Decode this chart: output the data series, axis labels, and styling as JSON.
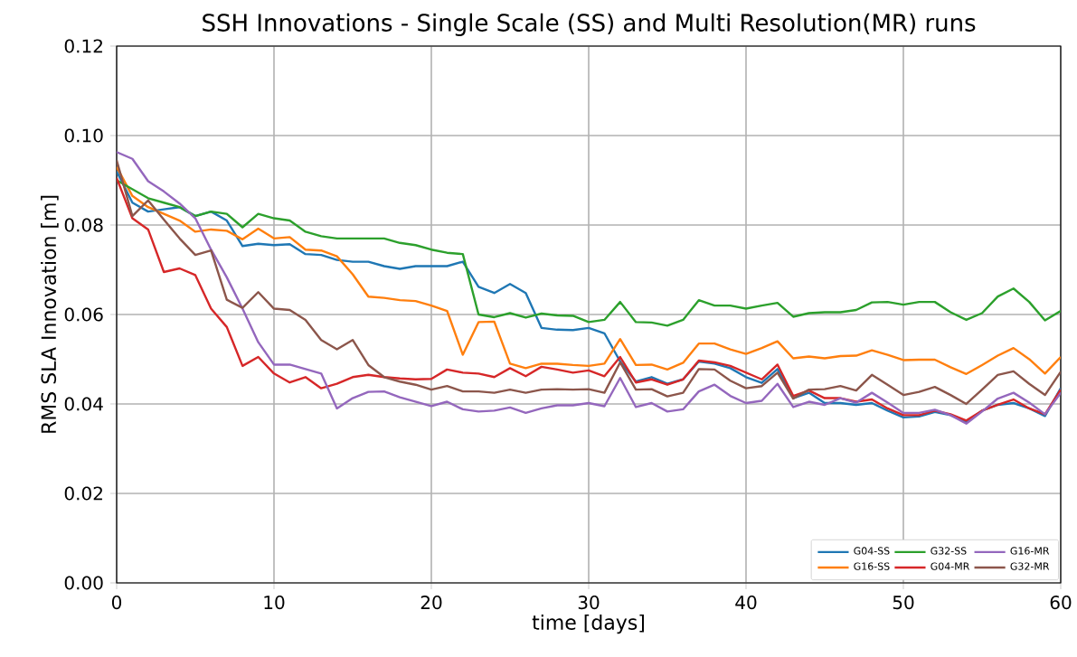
{
  "chart_data": {
    "type": "line",
    "title": "SSH Innovations - Single Scale (SS) and Multi Resolution(MR) runs",
    "xlabel": "time [days]",
    "ylabel": "RMS SLA Innovation [m]",
    "x": [
      0,
      1,
      2,
      3,
      4,
      5,
      6,
      7,
      8,
      9,
      10,
      11,
      12,
      13,
      14,
      15,
      16,
      17,
      18,
      19,
      20,
      21,
      22,
      23,
      24,
      25,
      26,
      27,
      28,
      29,
      30,
      31,
      32,
      33,
      34,
      35,
      36,
      37,
      38,
      39,
      40,
      41,
      42,
      43,
      44,
      45,
      46,
      47,
      48,
      49,
      50,
      51,
      52,
      53,
      54,
      55,
      56,
      57,
      58,
      59,
      60
    ],
    "xlim": [
      0,
      60
    ],
    "ylim": [
      0,
      0.12
    ],
    "xticks": [
      0,
      10,
      20,
      30,
      40,
      50,
      60
    ],
    "yticks": [
      {
        "value": 0,
        "label": "0.00"
      },
      {
        "value": 0.02,
        "label": "0.02"
      },
      {
        "value": 0.04,
        "label": "0.04"
      },
      {
        "value": 0.06,
        "label": "0.06"
      },
      {
        "value": 0.08,
        "label": "0.08"
      },
      {
        "value": 0.1,
        "label": "0.10"
      },
      {
        "value": 0.12,
        "label": "0.12"
      }
    ],
    "grid": true,
    "legend": "bottom right",
    "marker": "none",
    "line_style": "solid",
    "series": [
      {
        "name": "G04-SS",
        "color": "#1f77b4",
        "values": [
          0.092,
          0.085,
          0.083,
          0.0835,
          0.084,
          0.082,
          0.083,
          0.081,
          0.0753,
          0.0758,
          0.0755,
          0.0757,
          0.0735,
          0.0733,
          0.0722,
          0.0718,
          0.0718,
          0.0708,
          0.0702,
          0.0708,
          0.0708,
          0.0708,
          0.0718,
          0.0662,
          0.0648,
          0.0668,
          0.0648,
          0.057,
          0.0566,
          0.0565,
          0.057,
          0.0558,
          0.0495,
          0.045,
          0.046,
          0.0445,
          0.0455,
          0.0495,
          0.049,
          0.048,
          0.046,
          0.0447,
          0.0478,
          0.0413,
          0.0425,
          0.0402,
          0.0402,
          0.0398,
          0.0402,
          0.0385,
          0.037,
          0.0372,
          0.0382,
          0.0375,
          0.036,
          0.0385,
          0.0398,
          0.0402,
          0.039,
          0.0373,
          0.0435
        ]
      },
      {
        "name": "G16-SS",
        "color": "#ff7f0e",
        "values": [
          0.093,
          0.0865,
          0.084,
          0.0825,
          0.081,
          0.0785,
          0.079,
          0.0787,
          0.0768,
          0.0792,
          0.077,
          0.0773,
          0.0745,
          0.0743,
          0.073,
          0.069,
          0.064,
          0.0637,
          0.0632,
          0.063,
          0.062,
          0.0608,
          0.051,
          0.0583,
          0.0584,
          0.049,
          0.048,
          0.049,
          0.049,
          0.0487,
          0.0485,
          0.049,
          0.0545,
          0.0487,
          0.0488,
          0.0477,
          0.0492,
          0.0535,
          0.0535,
          0.0522,
          0.0512,
          0.0525,
          0.054,
          0.0502,
          0.0506,
          0.0502,
          0.0507,
          0.0508,
          0.052,
          0.051,
          0.0498,
          0.0499,
          0.0499,
          0.0482,
          0.0467,
          0.0487,
          0.0508,
          0.0525,
          0.05,
          0.0468,
          0.0505
        ]
      },
      {
        "name": "G32-SS",
        "color": "#2ca02c",
        "values": [
          0.09,
          0.088,
          0.086,
          0.085,
          0.084,
          0.082,
          0.083,
          0.0825,
          0.0795,
          0.0825,
          0.0815,
          0.081,
          0.0785,
          0.0775,
          0.077,
          0.077,
          0.077,
          0.077,
          0.076,
          0.0755,
          0.0745,
          0.0738,
          0.0735,
          0.06,
          0.0594,
          0.0603,
          0.0593,
          0.0602,
          0.0598,
          0.0597,
          0.0583,
          0.0588,
          0.0628,
          0.0583,
          0.0582,
          0.0575,
          0.0588,
          0.0632,
          0.062,
          0.062,
          0.0613,
          0.062,
          0.0626,
          0.0595,
          0.0603,
          0.0605,
          0.0605,
          0.061,
          0.0627,
          0.0628,
          0.0622,
          0.0628,
          0.0628,
          0.0605,
          0.0588,
          0.0603,
          0.064,
          0.0658,
          0.0628,
          0.0587,
          0.0608
        ]
      },
      {
        "name": "G04-MR",
        "color": "#d62728",
        "values": [
          0.0905,
          0.0815,
          0.079,
          0.0695,
          0.0703,
          0.0688,
          0.0613,
          0.0572,
          0.0485,
          0.0505,
          0.0468,
          0.0448,
          0.046,
          0.0435,
          0.0445,
          0.046,
          0.0465,
          0.046,
          0.0457,
          0.0455,
          0.0456,
          0.0477,
          0.047,
          0.0468,
          0.046,
          0.048,
          0.0462,
          0.0483,
          0.0477,
          0.047,
          0.0475,
          0.0462,
          0.0505,
          0.0448,
          0.0455,
          0.0443,
          0.0455,
          0.0497,
          0.0493,
          0.0485,
          0.047,
          0.0455,
          0.0488,
          0.0418,
          0.043,
          0.0413,
          0.0413,
          0.0405,
          0.041,
          0.039,
          0.0375,
          0.0375,
          0.0385,
          0.0377,
          0.0363,
          0.0385,
          0.0398,
          0.041,
          0.039,
          0.0377,
          0.0432
        ]
      },
      {
        "name": "G16-MR",
        "color": "#9467bd",
        "values": [
          0.0963,
          0.0948,
          0.0898,
          0.0875,
          0.0848,
          0.0815,
          0.0745,
          0.0683,
          0.0613,
          0.0538,
          0.0488,
          0.0488,
          0.0478,
          0.0468,
          0.039,
          0.0413,
          0.0427,
          0.0428,
          0.0415,
          0.0405,
          0.0395,
          0.0405,
          0.0388,
          0.0383,
          0.0385,
          0.0392,
          0.038,
          0.039,
          0.0397,
          0.0397,
          0.0402,
          0.0395,
          0.0458,
          0.0393,
          0.0402,
          0.0383,
          0.0388,
          0.0428,
          0.0443,
          0.0418,
          0.0402,
          0.0407,
          0.0445,
          0.0393,
          0.0405,
          0.0398,
          0.0413,
          0.0403,
          0.0425,
          0.0403,
          0.038,
          0.038,
          0.0387,
          0.0375,
          0.0356,
          0.0383,
          0.0412,
          0.0425,
          0.0403,
          0.0377,
          0.0425
        ]
      },
      {
        "name": "G32-MR",
        "color": "#8c564b",
        "values": [
          0.0945,
          0.082,
          0.0855,
          0.0812,
          0.077,
          0.0733,
          0.0743,
          0.0633,
          0.0615,
          0.065,
          0.0613,
          0.061,
          0.0588,
          0.0543,
          0.0522,
          0.0543,
          0.0487,
          0.046,
          0.045,
          0.0443,
          0.0432,
          0.044,
          0.0428,
          0.0428,
          0.0425,
          0.0432,
          0.0425,
          0.0432,
          0.0433,
          0.0432,
          0.0433,
          0.0425,
          0.0493,
          0.0432,
          0.0433,
          0.0417,
          0.0425,
          0.0478,
          0.0477,
          0.0452,
          0.0435,
          0.044,
          0.047,
          0.0412,
          0.0432,
          0.0433,
          0.044,
          0.043,
          0.0465,
          0.0443,
          0.042,
          0.0427,
          0.0438,
          0.042,
          0.04,
          0.0432,
          0.0465,
          0.0473,
          0.0445,
          0.042,
          0.0472
        ]
      }
    ]
  }
}
